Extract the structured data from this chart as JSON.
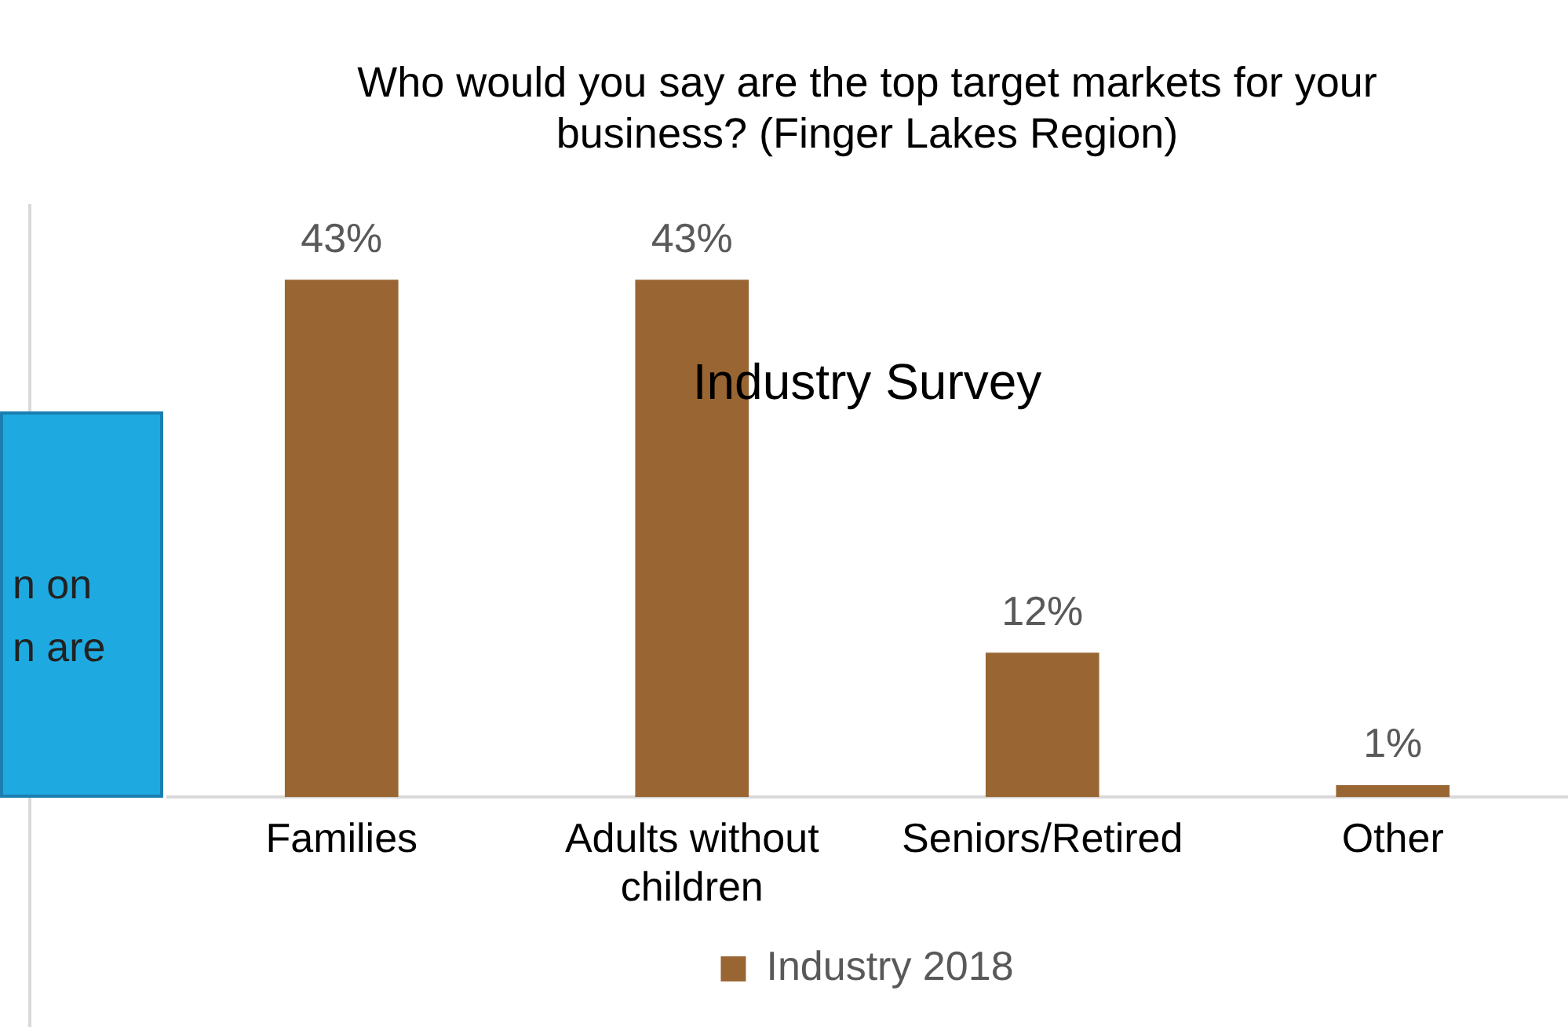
{
  "chart_data": {
    "type": "bar",
    "title": "Who would you say are the top target markets for your business? (Finger Lakes Region)",
    "categories": [
      "Families",
      "Adults without children",
      "Seniors/Retired",
      "Other"
    ],
    "series": [
      {
        "name": "Industry 2018",
        "color": "#996633",
        "values": [
          43,
          43,
          12,
          1
        ],
        "value_labels": [
          "43%",
          "43%",
          "12%",
          "1%"
        ]
      }
    ],
    "tick_labels": "x",
    "legend": "bottom",
    "grid": false,
    "annotations": [
      "Industry Survey",
      "n on\nn are"
    ]
  }
}
